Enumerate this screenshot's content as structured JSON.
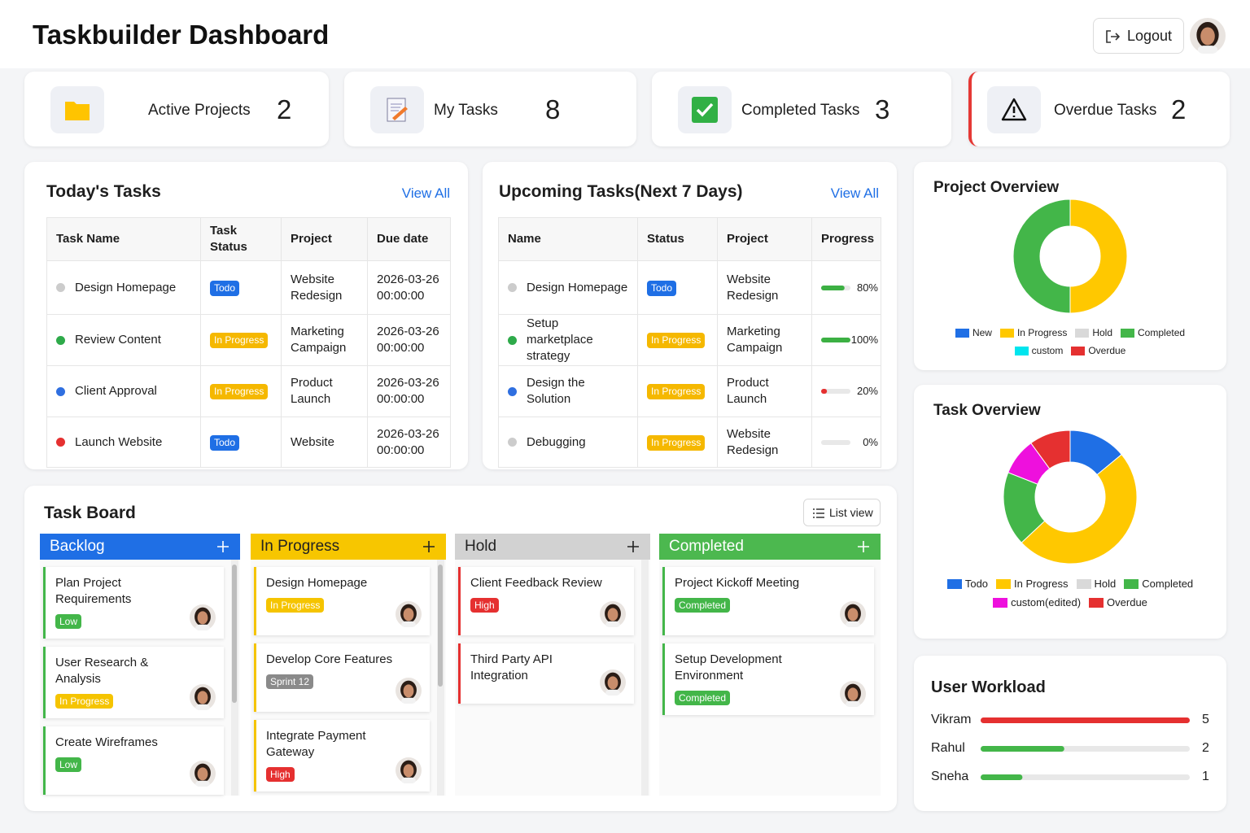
{
  "header": {
    "title": "Taskbuilder Dashboard",
    "logout": "Logout"
  },
  "stats": [
    {
      "label": "Active Projects",
      "value": 2
    },
    {
      "label": "My Tasks",
      "value": 8
    },
    {
      "label": "Completed Tasks",
      "value": 3
    },
    {
      "label": "Overdue Tasks",
      "value": 2,
      "border_color": "#e53935"
    }
  ],
  "todays_tasks": {
    "title": "Today's Tasks",
    "view_all": "View All",
    "columns": [
      "Task Name",
      "Task Status",
      "Project",
      "Due date"
    ],
    "rows": [
      {
        "name": "Design Homepage",
        "dot_color": "#cccccc",
        "status": "Todo",
        "status_color": "#1f6fe5",
        "project": "Website Redesign",
        "due": "2026-03-26 00:00:00"
      },
      {
        "name": "Review Content",
        "dot_color": "#2eaa4a",
        "status": "In Progress",
        "status_color": "#f5b800",
        "project": "Marketing Campaign",
        "due": "2026-03-26 00:00:00"
      },
      {
        "name": "Client Approval",
        "dot_color": "#2f6fe0",
        "status": "In Progress",
        "status_color": "#f5b800",
        "project": "Product Launch",
        "due": "2026-03-26 00:00:00"
      },
      {
        "name": "Launch Website",
        "dot_color": "#e53030",
        "status": "Todo",
        "status_color": "#1f6fe5",
        "project": "Website",
        "due": "2026-03-26 00:00:00"
      }
    ]
  },
  "upcoming_tasks": {
    "title": "Upcoming Tasks(Next 7 Days)",
    "view_all": "View All",
    "columns": [
      "Name",
      "Status",
      "Project",
      "Progress"
    ],
    "rows": [
      {
        "name": "Design Homepage",
        "dot_color": "#cccccc",
        "status": "Todo",
        "status_color": "#1f6fe5",
        "project": "Website Redesign",
        "progress": 80,
        "progress_label": "80%",
        "progress_color": "#3cb043"
      },
      {
        "name": "Setup marketplace strategy",
        "dot_color": "#2eaa4a",
        "status": "In Progress",
        "status_color": "#f5b800",
        "project": "Marketing Campaign",
        "progress": 100,
        "progress_label": "100%",
        "progress_color": "#3cb043"
      },
      {
        "name": "Design the Solution",
        "dot_color": "#2f6fe0",
        "status": "In Progress",
        "status_color": "#f5b800",
        "project": "Product Launch",
        "progress": 20,
        "progress_label": "20%",
        "progress_color": "#e53030"
      },
      {
        "name": "Debugging",
        "dot_color": "#cccccc",
        "status": "In Progress",
        "status_color": "#f5b800",
        "project": "Website Redesign",
        "progress": 0,
        "progress_label": "0%",
        "progress_color": "#f5c400"
      }
    ]
  },
  "project_overview": {
    "type": "donut",
    "title": "Project Overview",
    "categories": [
      "New",
      "In Progress",
      "Hold",
      "Completed",
      "custom",
      "Overdue"
    ],
    "colors": [
      "#1f6fe5",
      "#ffc800",
      "#d9d9d9",
      "#43b649",
      "#00e5ee",
      "#e53030"
    ],
    "values": [
      0,
      1,
      0,
      1,
      0,
      0
    ]
  },
  "task_overview": {
    "type": "donut",
    "title": "Task Overview",
    "categories": [
      "Todo",
      "In Progress",
      "Hold",
      "Completed",
      "custom(edited)",
      "Overdue"
    ],
    "colors": [
      "#1f6fe5",
      "#ffc800",
      "#d9d9d9",
      "#43b649",
      "#ee10dd",
      "#e53030"
    ],
    "values": [
      14,
      49,
      0,
      18,
      9,
      10
    ]
  },
  "task_board": {
    "title": "Task Board",
    "list_view": "List view",
    "columns": [
      {
        "name": "Backlog",
        "color": "#1f6fe5",
        "text_color": "#ffffff",
        "cards": [
          {
            "title": "Plan Project Requirements",
            "tag": "Low",
            "tag_color": "#43b649",
            "border_color": "#43b649"
          },
          {
            "title": "User Research & Analysis",
            "tag": "In Progress",
            "tag_color": "#f5c400",
            "border_color": "#43b649"
          },
          {
            "title": "Create Wireframes",
            "tag": "Low",
            "tag_color": "#43b649",
            "border_color": "#43b649"
          }
        ]
      },
      {
        "name": "In Progress",
        "color": "#f7c600",
        "text_color": "#222222",
        "cards": [
          {
            "title": "Design Homepage",
            "tag": "In Progress",
            "tag_color": "#f5c400",
            "border_color": "#f5c400"
          },
          {
            "title": "Develop Core Features",
            "tag": "Sprint 12",
            "tag_color": "#8a8a8a",
            "border_color": "#f5c400"
          },
          {
            "title": "Integrate Payment Gateway",
            "tag": "High",
            "tag_color": "#e53030",
            "border_color": "#f5c400"
          }
        ]
      },
      {
        "name": "Hold",
        "color": "#d2d2d2",
        "text_color": "#222222",
        "cards": [
          {
            "title": "Client Feedback Review",
            "tag": "High",
            "tag_color": "#e53030",
            "border_color": "#e53030"
          },
          {
            "title": "Third Party API Integration",
            "border_color": "#e53030"
          }
        ]
      },
      {
        "name": "Completed",
        "color": "#4cb84f",
        "text_color": "#ffffff",
        "cards": [
          {
            "title": "Project Kickoff Meeting",
            "tag": "Completed",
            "tag_color": "#43b649",
            "border_color": "#43b649"
          },
          {
            "title": "Setup Development Environment",
            "tag": "Completed",
            "tag_color": "#43b649",
            "border_color": "#43b649"
          }
        ]
      }
    ]
  },
  "user_workload": {
    "title": "User Workload",
    "users": [
      {
        "name": "Vikram",
        "value": 5,
        "color": "#e53030"
      },
      {
        "name": "Rahul",
        "value": 2,
        "color": "#43b649"
      },
      {
        "name": "Sneha",
        "value": 1,
        "color": "#43b649"
      }
    ]
  }
}
